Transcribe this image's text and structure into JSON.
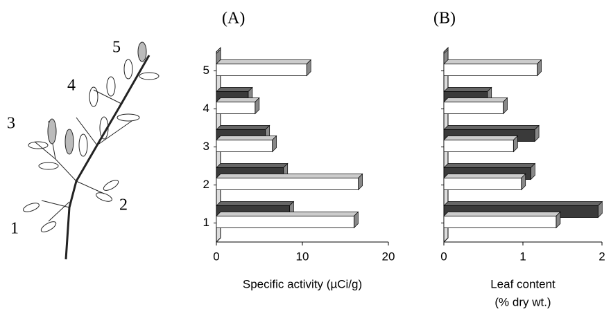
{
  "plant": {
    "labels": [
      "1",
      "2",
      "3",
      "4",
      "5"
    ]
  },
  "chart_data": [
    {
      "type": "bar",
      "orientation": "horizontal",
      "title": "(A)",
      "xlabel": [
        "Specific activity (µCi/g)"
      ],
      "categories": [
        "1",
        "2",
        "3",
        "4",
        "5"
      ],
      "series": [
        {
          "color": "#3a3a3a",
          "values": [
            8.5,
            7.8,
            5.7,
            3.7,
            0
          ]
        },
        {
          "color": "#ffffff",
          "values": [
            16,
            16.5,
            6.5,
            4.5,
            10.5
          ]
        }
      ],
      "xlim": [
        0,
        20
      ],
      "xticks": [
        0,
        10,
        20
      ]
    },
    {
      "type": "bar",
      "orientation": "horizontal",
      "title": "(B)",
      "xlabel": [
        "Leaf content",
        "(% dry wt.)"
      ],
      "categories": [
        null,
        null,
        null,
        null,
        null
      ],
      "series": [
        {
          "color": "#3a3a3a",
          "values": [
            1.95,
            1.1,
            1.15,
            0.55,
            0
          ]
        },
        {
          "color": "#ffffff",
          "values": [
            1.42,
            0.98,
            0.88,
            0.75,
            1.18
          ]
        }
      ],
      "xlim": [
        0,
        2
      ],
      "xticks": [
        0,
        1,
        2
      ]
    }
  ]
}
